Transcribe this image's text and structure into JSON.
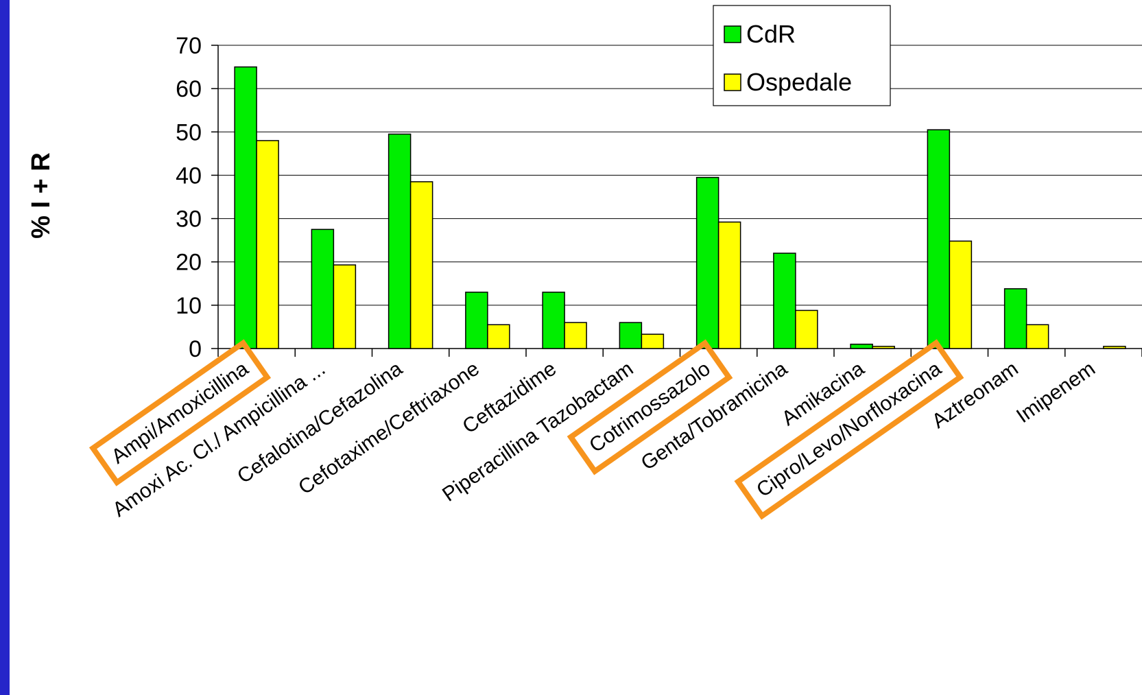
{
  "chart_data": {
    "type": "bar",
    "ylabel": "% I + R",
    "xlabel": "",
    "ylim": [
      0,
      70
    ],
    "yticks": [
      0,
      10,
      20,
      30,
      40,
      50,
      60,
      70
    ],
    "grid": true,
    "legend_position": "top-right",
    "categories": [
      "Ampi/Amoxicillina",
      "Amoxi Ac. Cl./ Ampicillina ...",
      "Cefalotina/Cefazolina",
      "Cefotaxime/Ceftriaxone",
      "Ceftazidime",
      "Piperacillina Tazobactam",
      "Cotrimossazolo",
      "Genta/Tobramicina",
      "Amikacina",
      "Cipro/Levo/Norfloxacina",
      "Aztreonam",
      "Imipenem"
    ],
    "series": [
      {
        "name": "CdR",
        "color": "#00ee00",
        "values": [
          65,
          27.5,
          49.5,
          13,
          13,
          6,
          39.5,
          22,
          1,
          50.5,
          13.8,
          0
        ]
      },
      {
        "name": "Ospedale",
        "color": "#ffff00",
        "values": [
          48,
          19.3,
          38.5,
          5.5,
          6,
          3.3,
          29.2,
          8.8,
          0.5,
          24.8,
          5.5,
          0.5
        ]
      }
    ],
    "highlighted_categories": [
      "Ampi/Amoxicillina",
      "Cotrimossazolo",
      "Cipro/Levo/Norfloxacina"
    ],
    "highlight_color": "#f7941d"
  }
}
